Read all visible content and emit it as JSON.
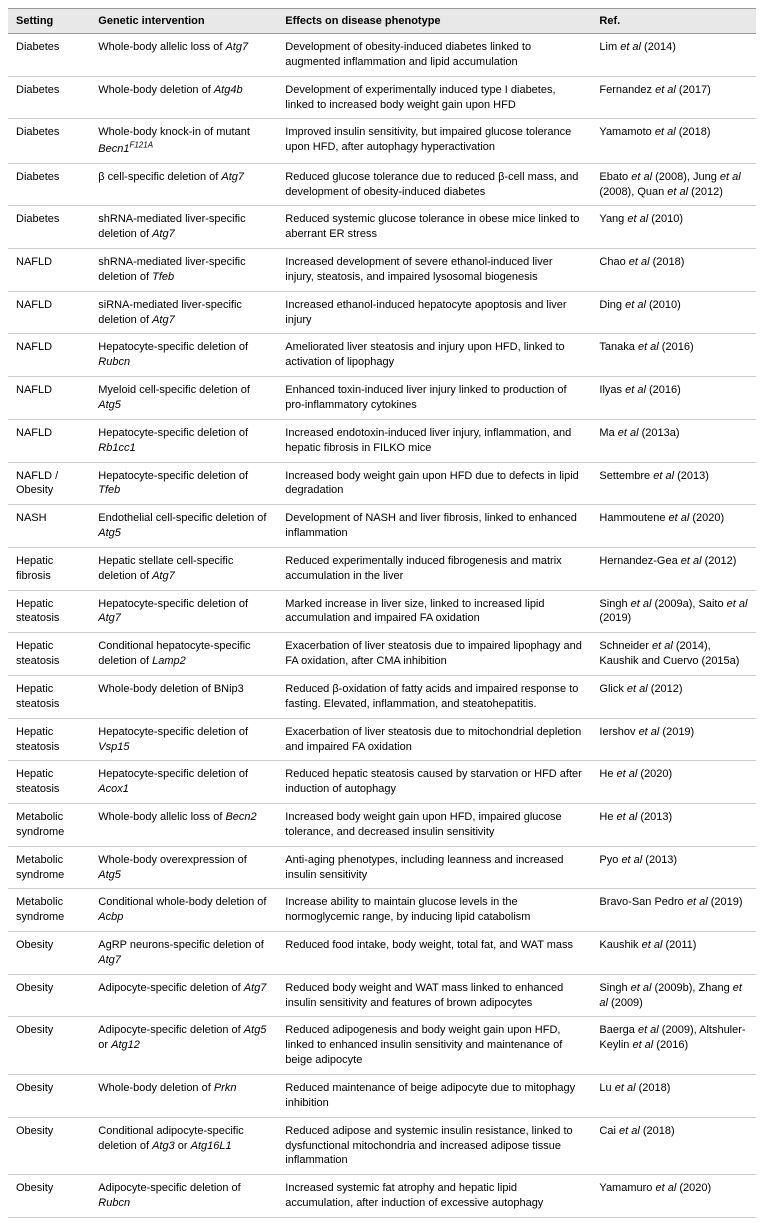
{
  "columns": [
    "Setting",
    "Genetic intervention",
    "Effects on disease phenotype",
    "Ref."
  ],
  "rows": [
    {
      "setting": "Diabetes",
      "intervention": "Whole-body allelic loss of <i>Atg7</i>",
      "effects": "Development of obesity-induced diabetes linked to augmented inflammation and lipid accumulation",
      "ref": "Lim <i>et al</i> (2014)"
    },
    {
      "setting": "Diabetes",
      "intervention": "Whole-body deletion of <i>Atg4b</i>",
      "effects": "Development of experimentally induced type I diabetes, linked to increased body weight gain upon HFD",
      "ref": "Fernandez <i>et al</i> (2017)"
    },
    {
      "setting": "Diabetes",
      "intervention": "Whole-body knock-in of mutant <i>Becn1<sup>F121A</sup></i>",
      "effects": "Improved insulin sensitivity, but impaired glucose tolerance upon HFD, after autophagy hyperactivation",
      "ref": "Yamamoto <i>et al</i> (2018)"
    },
    {
      "setting": "Diabetes",
      "intervention": "β cell-specific deletion of <i>Atg7</i>",
      "effects": "Reduced glucose tolerance due to reduced β-cell mass, and development of obesity-induced diabetes",
      "ref": "Ebato <i>et al</i> (2008), Jung <i>et al</i> (2008), Quan <i>et al</i> (2012)"
    },
    {
      "setting": "Diabetes",
      "intervention": "shRNA-mediated liver-specific deletion of <i>Atg7</i>",
      "effects": "Reduced systemic glucose tolerance in obese mice linked to aberrant ER stress",
      "ref": "Yang <i>et al</i> (2010)"
    },
    {
      "setting": "NAFLD",
      "intervention": "shRNA-mediated liver-specific deletion of <i>Tfeb</i>",
      "effects": "Increased development of severe ethanol-induced liver injury, steatosis, and impaired lysosomal biogenesis",
      "ref": "Chao <i>et al</i> (2018)"
    },
    {
      "setting": "NAFLD",
      "intervention": "siRNA-mediated liver-specific deletion of <i>Atg7</i>",
      "effects": "Increased ethanol-induced hepatocyte apoptosis and liver injury",
      "ref": "Ding <i>et al</i> (2010)"
    },
    {
      "setting": "NAFLD",
      "intervention": "Hepatocyte-specific deletion of <i>Rubcn</i>",
      "effects": "Ameliorated liver steatosis and injury upon HFD, linked to activation of lipophagy",
      "ref": "Tanaka <i>et al</i> (2016)"
    },
    {
      "setting": "NAFLD",
      "intervention": "Myeloid cell-specific deletion of <i>Atg5</i>",
      "effects": "Enhanced toxin-induced liver injury linked to production of pro-inflammatory cytokines",
      "ref": "Ilyas <i>et al</i> (2016)"
    },
    {
      "setting": "NAFLD",
      "intervention": "Hepatocyte-specific deletion of <i>Rb1cc1</i>",
      "effects": "Increased endotoxin-induced liver injury, inflammation, and hepatic fibrosis in FILKO mice",
      "ref": "Ma <i>et al</i> (2013a)"
    },
    {
      "setting": "NAFLD / Obesity",
      "intervention": "Hepatocyte-specific deletion of <i>Tfeb</i>",
      "effects": "Increased body weight gain upon HFD due to defects in lipid degradation",
      "ref": "Settembre <i>et al</i> (2013)"
    },
    {
      "setting": "NASH",
      "intervention": "Endothelial cell-specific deletion of <i>Atg5</i>",
      "effects": "Development of NASH and liver fibrosis, linked to enhanced inflammation",
      "ref": "Hammoutene <i>et al</i> (2020)"
    },
    {
      "setting": "Hepatic fibrosis",
      "intervention": "Hepatic stellate cell-specific deletion of <i>Atg7</i>",
      "effects": "Reduced experimentally induced fibrogenesis and matrix accumulation in the liver",
      "ref": "Hernandez-Gea <i>et al</i> (2012)"
    },
    {
      "setting": "Hepatic steatosis",
      "intervention": "Hepatocyte-specific deletion of <i>Atg7</i>",
      "effects": "Marked increase in liver size, linked to increased lipid accumulation and impaired FA oxidation",
      "ref": "Singh <i>et al</i> (2009a), Saito <i>et al</i> (2019)"
    },
    {
      "setting": "Hepatic steatosis",
      "intervention": "Conditional hepatocyte-specific deletion of <i>Lamp2</i>",
      "effects": "Exacerbation of liver steatosis due to impaired lipophagy and FA oxidation, after CMA inhibition",
      "ref": "Schneider <i>et al</i> (2014), Kaushik and Cuervo (2015a)"
    },
    {
      "setting": "Hepatic steatosis",
      "intervention": "Whole-body deletion of BNip3",
      "effects": "Reduced β-oxidation of fatty acids and impaired response to fasting. Elevated, inflammation, and steatohepatitis.",
      "ref": "Glick <i>et al</i> (2012)"
    },
    {
      "setting": "Hepatic steatosis",
      "intervention": "Hepatocyte-specific deletion of <i>Vsp15</i>",
      "effects": "Exacerbation of liver steatosis due to mitochondrial depletion and impaired FA oxidation",
      "ref": "Iershov <i>et al</i> (2019)"
    },
    {
      "setting": "Hepatic steatosis",
      "intervention": "Hepatocyte-specific deletion of <i>Acox1</i>",
      "effects": "Reduced hepatic steatosis caused by starvation or HFD after induction of autophagy",
      "ref": "He <i>et al</i> (2020)"
    },
    {
      "setting": "Metabolic syndrome",
      "intervention": "Whole-body allelic loss of <i>Becn2</i>",
      "effects": "Increased body weight gain upon HFD, impaired glucose tolerance, and decreased insulin sensitivity",
      "ref": "He <i>et al</i> (2013)"
    },
    {
      "setting": "Metabolic syndrome",
      "intervention": "Whole-body overexpression of <i>Atg5</i>",
      "effects": "Anti-aging phenotypes, including leanness and increased insulin sensitivity",
      "ref": "Pyo <i>et al</i> (2013)"
    },
    {
      "setting": "Metabolic syndrome",
      "intervention": "Conditional whole-body deletion of <i>Acbp</i>",
      "effects": "Increase ability to maintain glucose levels in the normoglycemic range, by inducing lipid catabolism",
      "ref": "Bravo-San Pedro <i>et al</i> (2019)"
    },
    {
      "setting": "Obesity",
      "intervention": "AgRP neurons-specific deletion of <i>Atg7</i>",
      "effects": "Reduced food intake, body weight, total fat, and WAT mass",
      "ref": "Kaushik <i>et al</i> (2011)"
    },
    {
      "setting": "Obesity",
      "intervention": "Adipocyte-specific deletion of <i>Atg7</i>",
      "effects": "Reduced body weight and WAT mass linked to enhanced insulin sensitivity and features of brown adipocytes",
      "ref": "Singh <i>et al</i> (2009b), Zhang <i>et al</i> (2009)"
    },
    {
      "setting": "Obesity",
      "intervention": "Adipocyte-specific deletion of <i>Atg5</i> or <i>Atg12</i>",
      "effects": "Reduced adipogenesis and body weight gain upon HFD, linked to enhanced insulin sensitivity and maintenance of beige adipocyte",
      "ref": "Baerga <i>et al</i> (2009), Altshuler-Keylin <i>et al</i> (2016)"
    },
    {
      "setting": "Obesity",
      "intervention": "Whole-body deletion of <i>Prkn</i>",
      "effects": "Reduced maintenance of beige adipocyte due to mitophagy inhibition",
      "ref": "Lu <i>et al</i> (2018)"
    },
    {
      "setting": "Obesity",
      "intervention": "Conditional adipocyte-specific deletion of <i>Atg3</i> or <i>Atg16L1</i>",
      "effects": "Reduced adipose and systemic insulin resistance, linked to dysfunctional mitochondria and increased adipose tissue inflammation",
      "ref": "Cai <i>et al</i> (2018)"
    },
    {
      "setting": "Obesity",
      "intervention": "Adipocyte-specific deletion of <i>Rubcn</i>",
      "effects": "Increased systemic fat atrophy and hepatic lipid accumulation, after induction of excessive autophagy",
      "ref": "Yamamuro <i>et al</i> (2020)"
    }
  ]
}
